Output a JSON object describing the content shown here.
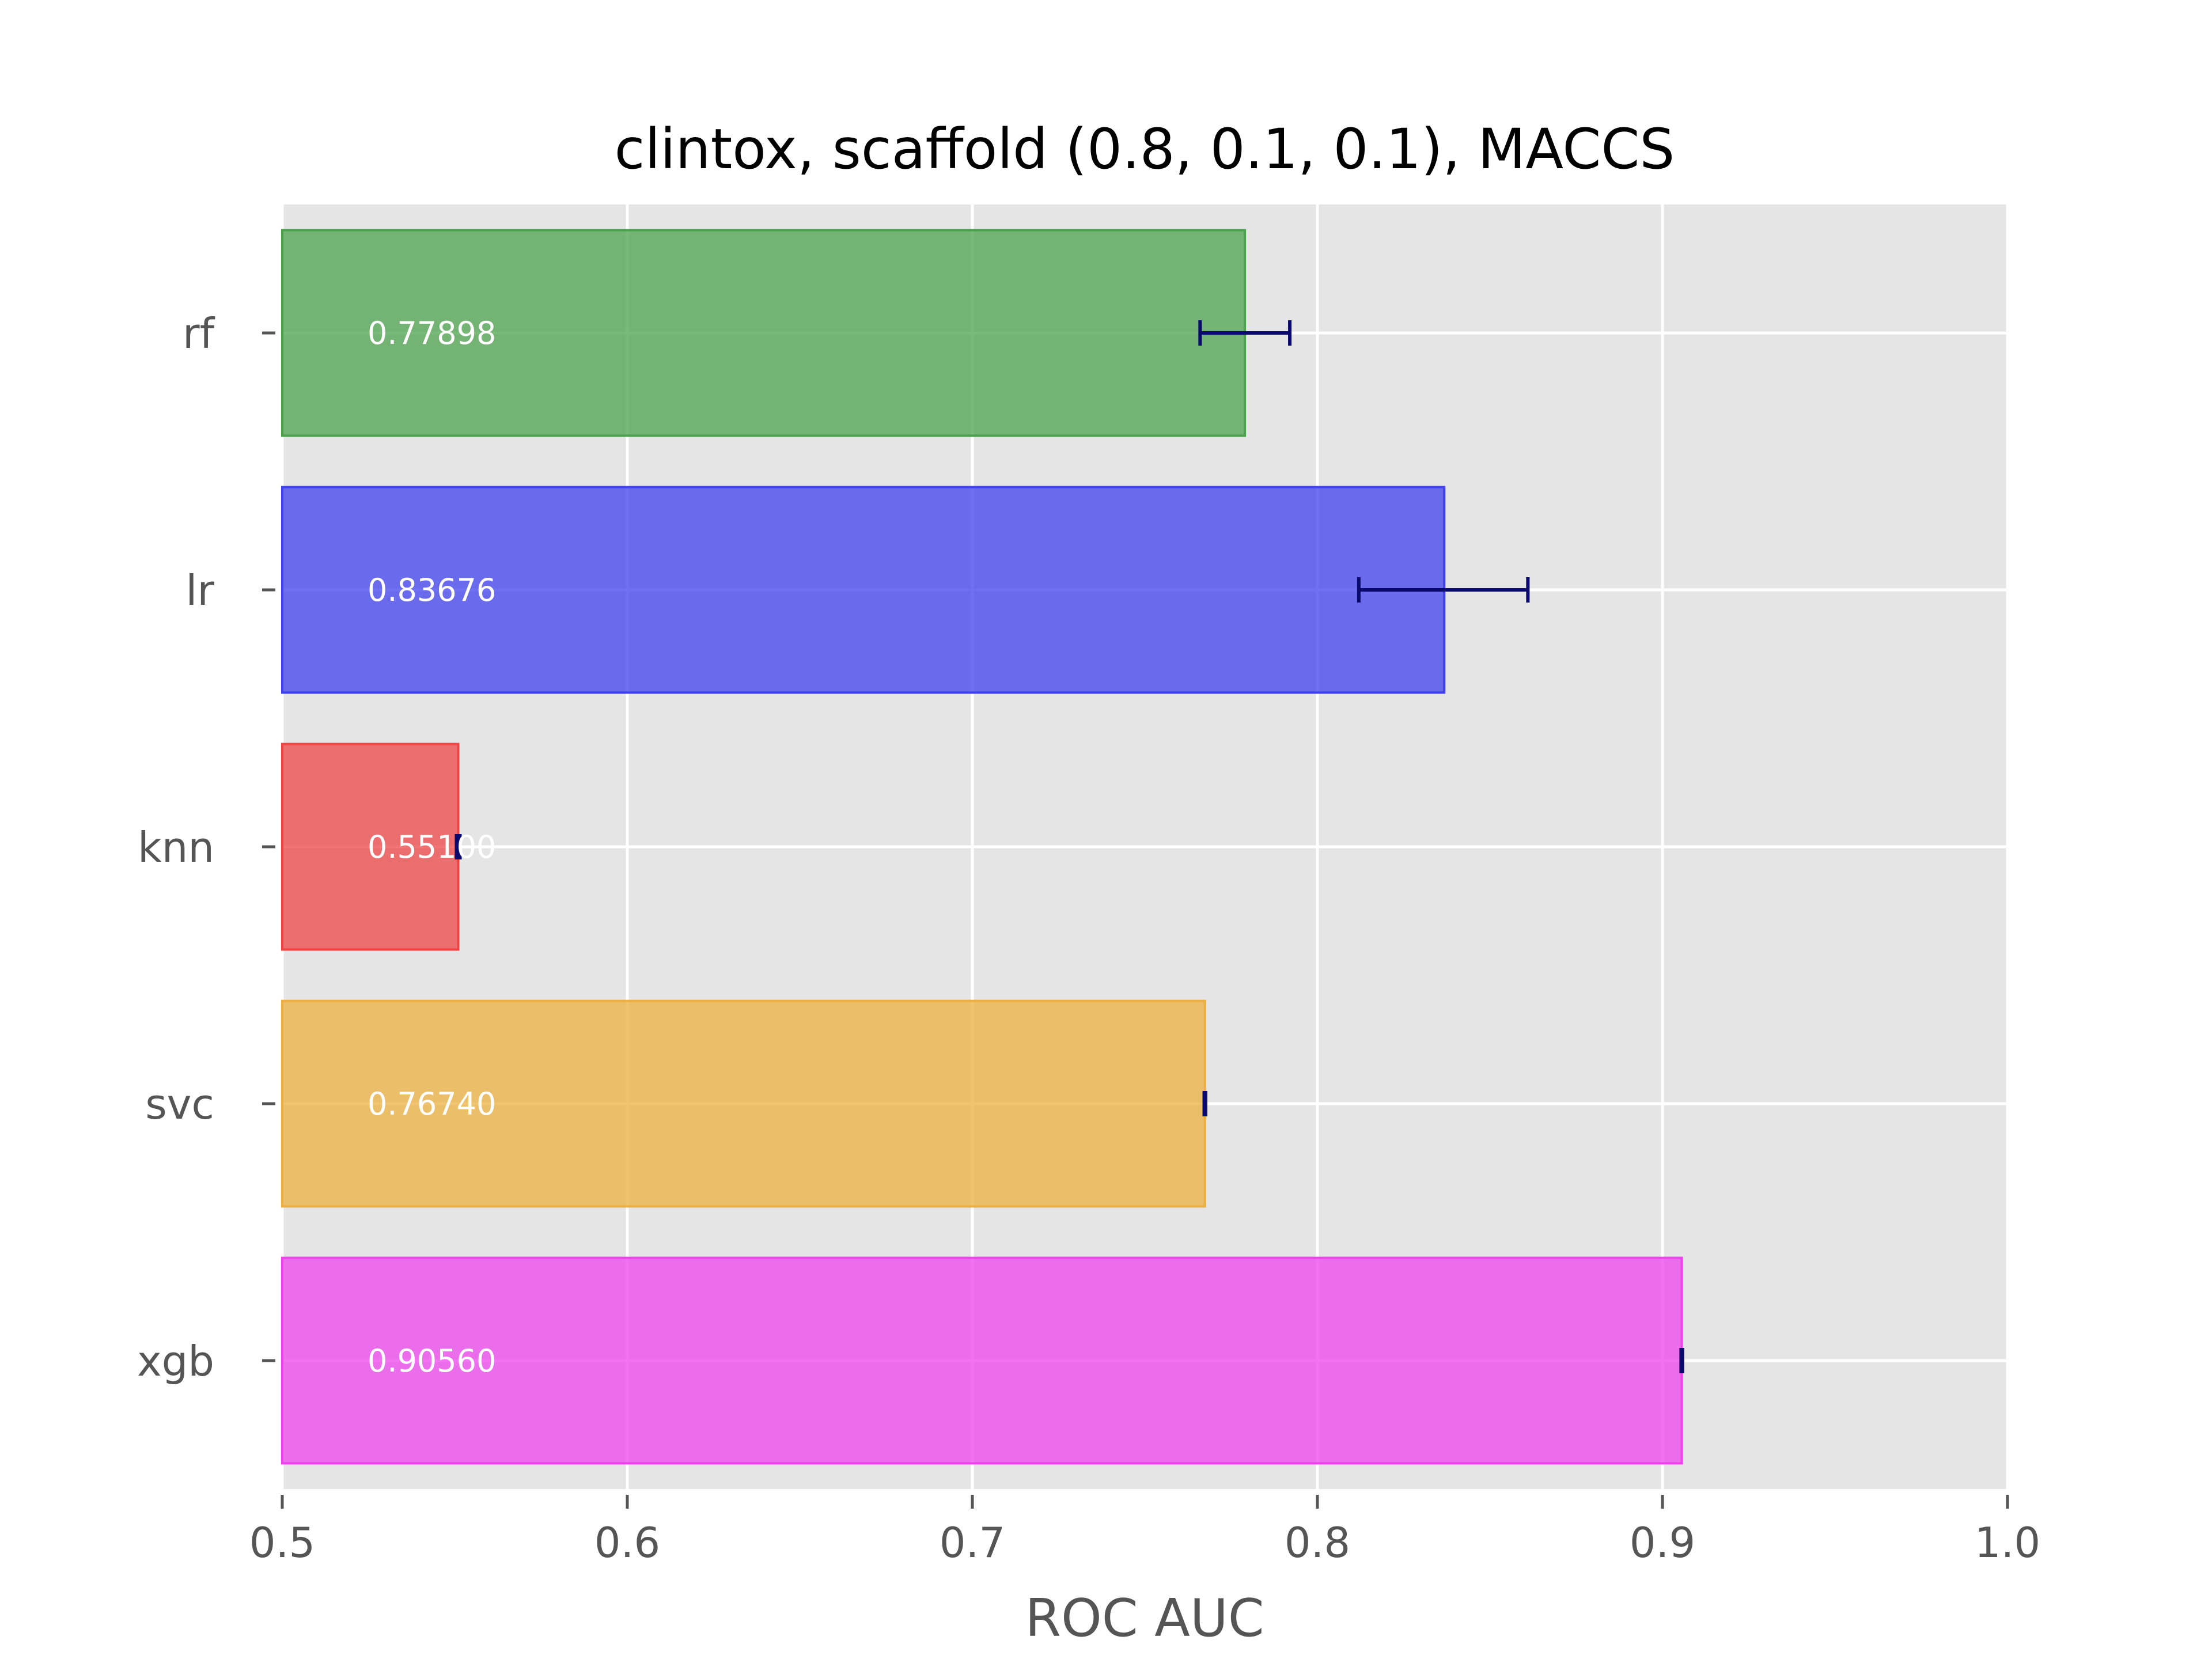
{
  "chart_data": {
    "type": "bar",
    "orientation": "horizontal",
    "title": "clintox, scaffold (0.8, 0.1, 0.1), MACCS",
    "xlabel": "ROC AUC",
    "ylabel": "",
    "xlim": [
      0.5,
      1.0
    ],
    "xticks": [
      "0.5",
      "0.6",
      "0.7",
      "0.8",
      "0.9",
      "1.0"
    ],
    "grid": true,
    "categories": [
      "rf",
      "lr",
      "knn",
      "svc",
      "xgb"
    ],
    "values": [
      0.77898,
      0.83676,
      0.551,
      0.7674,
      0.9056
    ],
    "value_labels": [
      "0.77898",
      "0.83676",
      "0.55100",
      "0.76740",
      "0.90560"
    ],
    "error_low": [
      0.766,
      0.812,
      0.5505,
      0.7672,
      0.9054
    ],
    "error_high": [
      0.792,
      0.861,
      0.5515,
      0.7676,
      0.9058
    ],
    "colors": [
      "#4ca14c",
      "#4040ee",
      "#ee4444",
      "#ecb040",
      "#ee44ee"
    ],
    "error_color": "#0a0a6e",
    "background": "#e5e5e5",
    "grid_color": "#ffffff"
  }
}
